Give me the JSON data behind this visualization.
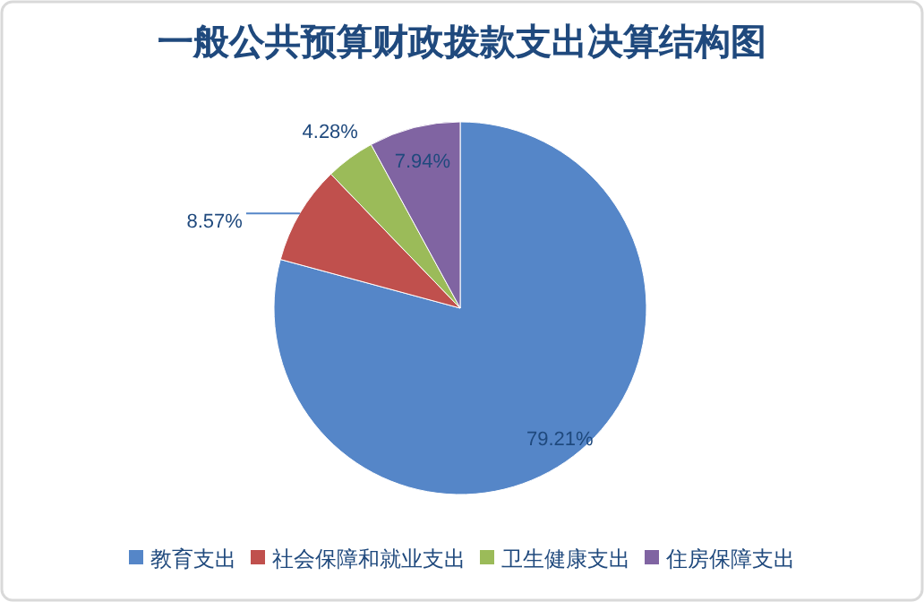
{
  "chart_data": {
    "type": "pie",
    "title": "一般公共预算财政拨款支出决算结构图",
    "categories": [
      "教育支出",
      "社会保障和就业支出",
      "卫生健康支出",
      "住房保障支出"
    ],
    "values": [
      79.21,
      8.57,
      4.28,
      7.94
    ],
    "colors": [
      "#5586c8",
      "#c0504d",
      "#9bbb59",
      "#8064a2"
    ],
    "value_labels": [
      "79.21%",
      "8.57%",
      "4.28%",
      "7.94%"
    ],
    "legend": "bottom"
  }
}
